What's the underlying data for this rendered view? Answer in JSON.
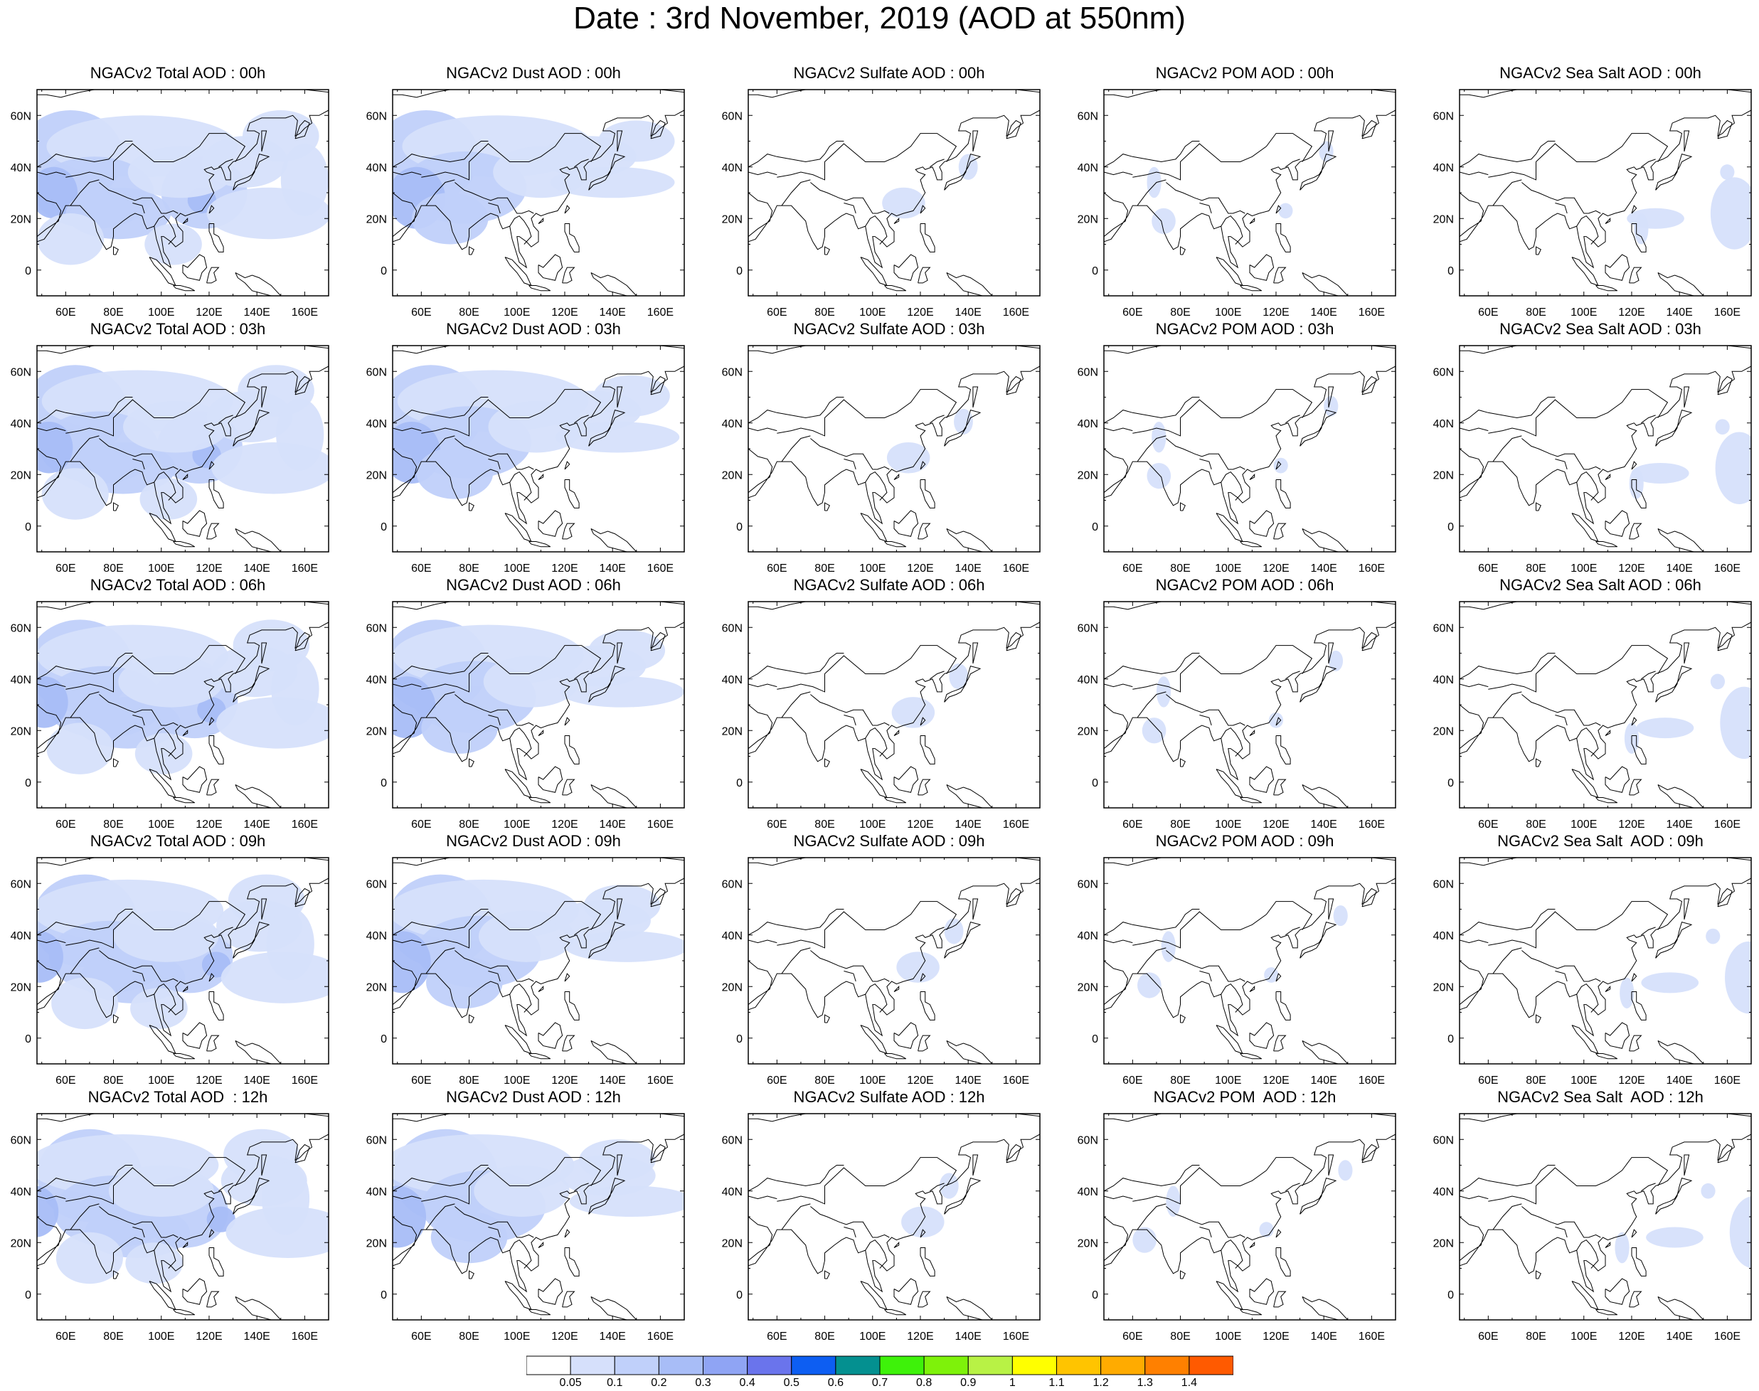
{
  "title": "Date : 3rd November, 2019 (AOD at 550nm)",
  "axes": {
    "x_ticks": [
      "60E",
      "80E",
      "100E",
      "120E",
      "140E",
      "160E"
    ],
    "y_ticks": [
      "60N",
      "40N",
      "20N",
      "0"
    ]
  },
  "colors": {
    "scale": [
      "#ffffff",
      "#d6e0fb",
      "#c0d0fa",
      "#a8bdf7",
      "#8fa4f4",
      "#6a74ec",
      "#0d5ef2",
      "#049090",
      "#3ef20a",
      "#7ef20a",
      "#b8f245",
      "#ffff00",
      "#ffc400",
      "#ffab00",
      "#ff8000",
      "#ff5a00",
      "#ff1400"
    ],
    "coast": "#000000"
  },
  "colorbar": {
    "labels": [
      "0.05",
      "0.1",
      "0.2",
      "0.3",
      "0.4",
      "0.5",
      "0.6",
      "0.7",
      "0.8",
      "0.9",
      "1",
      "1.1",
      "1.2",
      "1.3",
      "1.4"
    ]
  },
  "panels": [
    [
      "NGACv2 Total AOD : 00h",
      "NGACv2 Dust AOD : 00h",
      "NGACv2 Sulfate AOD : 00h",
      "NGACv2 POM AOD : 00h",
      "NGACv2 Sea Salt AOD : 00h"
    ],
    [
      "NGACv2 Total AOD : 03h",
      "NGACv2 Dust AOD : 03h",
      "NGACv2 Sulfate AOD : 03h",
      "NGACv2 POM AOD : 03h",
      "NGACv2 Sea Salt AOD : 03h"
    ],
    [
      "NGACv2 Total AOD : 06h",
      "NGACv2 Dust AOD : 06h",
      "NGACv2 Sulfate AOD : 06h",
      "NGACv2 POM AOD : 06h",
      "NGACv2 Sea Salt AOD : 06h"
    ],
    [
      "NGACv2 Total AOD : 09h",
      "NGACv2 Dust AOD : 09h",
      "NGACv2 Sulfate AOD : 09h",
      "NGACv2 POM AOD : 09h",
      "NGACv2 Sea Salt  AOD : 09h"
    ],
    [
      "NGACv2 Total AOD  : 12h",
      "NGACv2 Dust AOD : 12h",
      "NGACv2 Sulfate AOD : 12h",
      "NGACv2 POM  AOD : 12h",
      "NGACv2 Sea Salt  AOD : 12h"
    ]
  ]
}
